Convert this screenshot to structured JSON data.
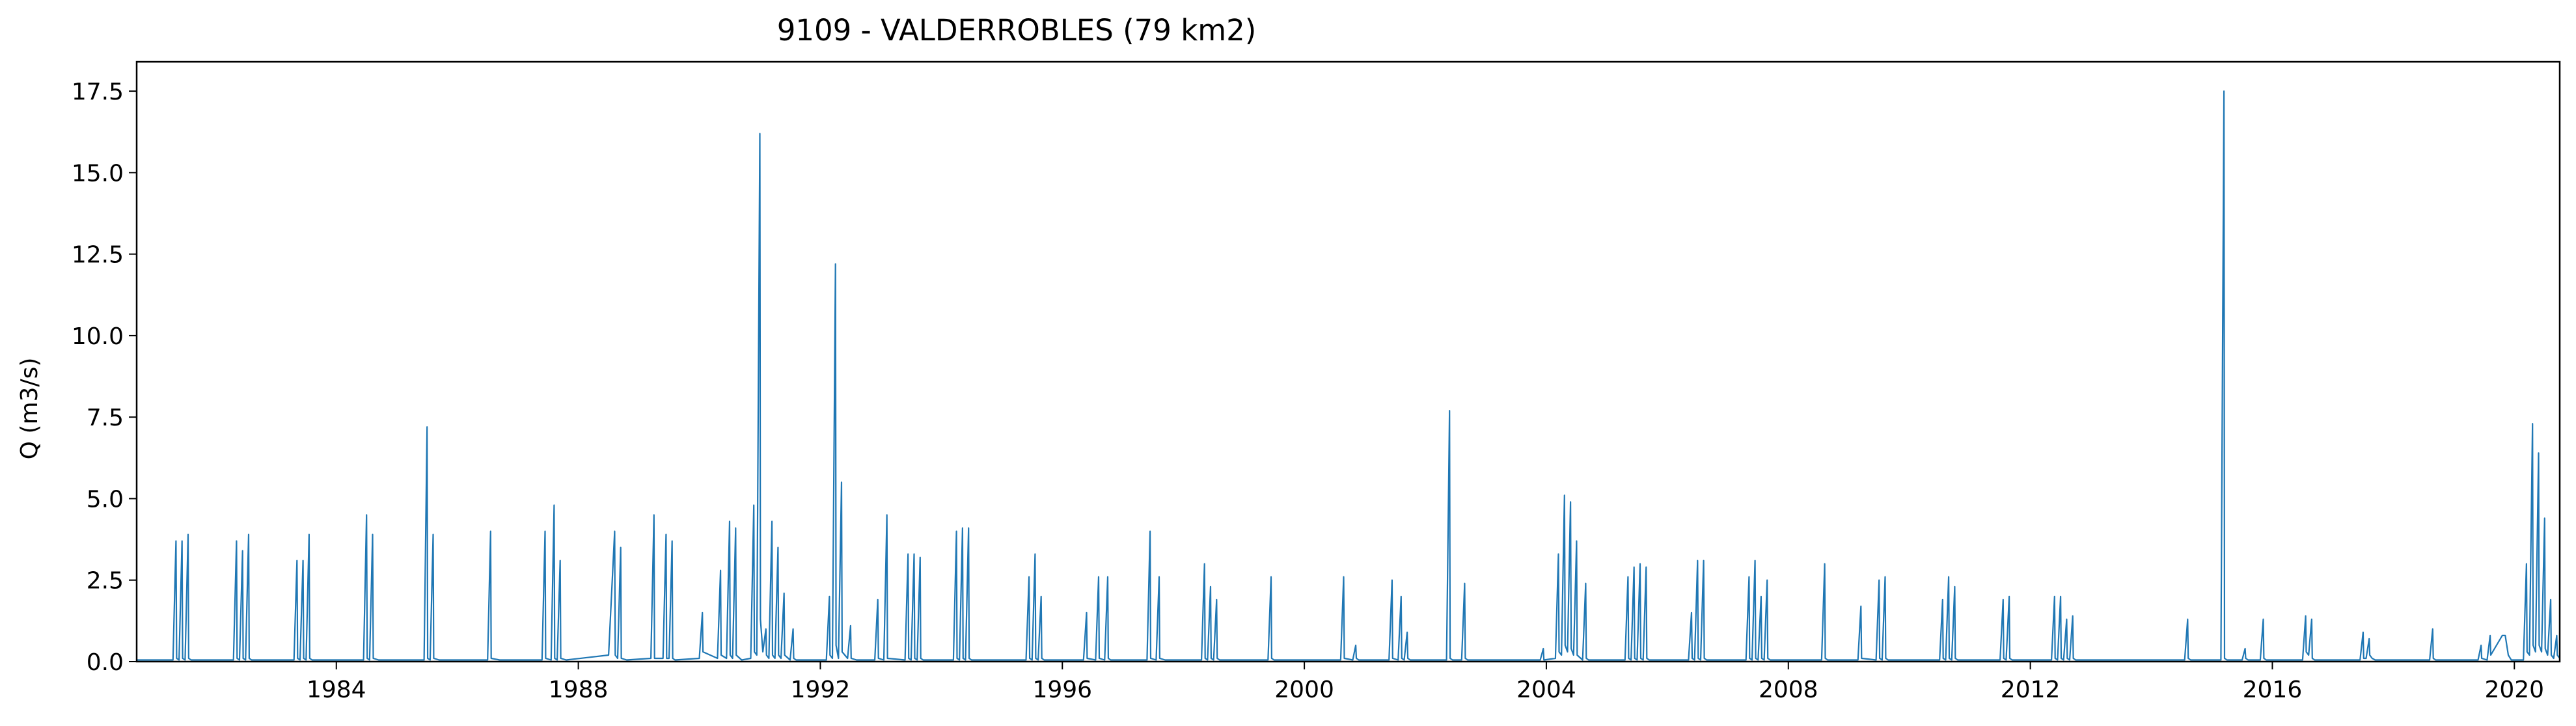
{
  "chart_data": {
    "type": "line",
    "title": "9109 - VALDERROBLES (79 km2)",
    "xlabel": "",
    "ylabel": "Q (m3/s)",
    "xlim": [
      1980.7,
      2020.75
    ],
    "ylim": [
      0,
      18.4
    ],
    "x_ticks": [
      1984,
      1988,
      1992,
      1996,
      2000,
      2004,
      2008,
      2012,
      2016,
      2020
    ],
    "y_ticks": [
      0.0,
      2.5,
      5.0,
      7.5,
      10.0,
      12.5,
      15.0,
      17.5
    ],
    "grid": false,
    "legend": "none",
    "series": [
      {
        "color": "#1f77b4",
        "x": [
          1980.7,
          1981.3,
          1981.35,
          1981.36,
          1981.4,
          1981.45,
          1981.46,
          1981.5,
          1981.55,
          1981.56,
          1981.6,
          1982.3,
          1982.35,
          1982.36,
          1982.4,
          1982.45,
          1982.46,
          1982.5,
          1982.55,
          1982.56,
          1982.6,
          1983.3,
          1983.35,
          1983.36,
          1983.4,
          1983.45,
          1983.46,
          1983.5,
          1983.55,
          1983.56,
          1983.6,
          1984.45,
          1984.5,
          1984.51,
          1984.55,
          1984.6,
          1984.61,
          1984.7,
          1985.45,
          1985.5,
          1985.51,
          1985.55,
          1985.6,
          1985.61,
          1985.7,
          1986.5,
          1986.55,
          1986.56,
          1986.7,
          1987.4,
          1987.45,
          1987.46,
          1987.55,
          1987.6,
          1987.61,
          1987.65,
          1987.7,
          1987.71,
          1987.8,
          1988.5,
          1988.6,
          1988.61,
          1988.65,
          1988.7,
          1988.71,
          1988.8,
          1989.2,
          1989.25,
          1989.26,
          1989.4,
          1989.45,
          1989.46,
          1989.5,
          1989.55,
          1989.56,
          1989.6,
          1990.0,
          1990.05,
          1990.06,
          1990.3,
          1990.35,
          1990.36,
          1990.45,
          1990.5,
          1990.51,
          1990.55,
          1990.6,
          1990.61,
          1990.7,
          1990.85,
          1990.9,
          1990.91,
          1990.95,
          1991.0,
          1991.01,
          1991.05,
          1991.1,
          1991.11,
          1991.15,
          1991.2,
          1991.21,
          1991.25,
          1991.3,
          1991.31,
          1991.35,
          1991.4,
          1991.41,
          1991.5,
          1991.55,
          1991.56,
          1991.6,
          1992.1,
          1992.15,
          1992.16,
          1992.2,
          1992.25,
          1992.26,
          1992.3,
          1992.35,
          1992.36,
          1992.45,
          1992.5,
          1992.51,
          1992.6,
          1992.9,
          1992.95,
          1992.96,
          1993.05,
          1993.1,
          1993.11,
          1993.4,
          1993.45,
          1993.46,
          1993.5,
          1993.55,
          1993.56,
          1993.6,
          1993.65,
          1993.66,
          1993.7,
          1994.2,
          1994.25,
          1994.26,
          1994.3,
          1994.35,
          1994.36,
          1994.4,
          1994.45,
          1994.46,
          1994.5,
          1995.4,
          1995.45,
          1995.46,
          1995.5,
          1995.55,
          1995.56,
          1995.6,
          1995.65,
          1995.66,
          1995.7,
          1996.35,
          1996.4,
          1996.41,
          1996.55,
          1996.6,
          1996.61,
          1996.7,
          1996.75,
          1996.76,
          1996.8,
          1997.4,
          1997.45,
          1997.46,
          1997.55,
          1997.6,
          1997.61,
          1997.7,
          1998.3,
          1998.35,
          1998.36,
          1998.4,
          1998.45,
          1998.46,
          1998.5,
          1998.55,
          1998.56,
          1998.6,
          1999.4,
          1999.45,
          1999.46,
          1999.5,
          2000.6,
          2000.65,
          2000.66,
          2000.8,
          2000.85,
          2000.86,
          2000.9,
          2001.4,
          2001.45,
          2001.46,
          2001.55,
          2001.6,
          2001.61,
          2001.65,
          2001.7,
          2001.71,
          2001.75,
          2002.35,
          2002.4,
          2002.41,
          2002.45,
          2002.6,
          2002.65,
          2002.66,
          2002.7,
          2003.9,
          2003.95,
          2003.96,
          2004.15,
          2004.2,
          2004.21,
          2004.25,
          2004.3,
          2004.31,
          2004.35,
          2004.4,
          2004.41,
          2004.45,
          2004.5,
          2004.51,
          2004.6,
          2004.65,
          2004.66,
          2004.7,
          2005.3,
          2005.35,
          2005.36,
          2005.4,
          2005.45,
          2005.46,
          2005.5,
          2005.55,
          2005.56,
          2005.6,
          2005.65,
          2005.66,
          2005.7,
          2006.35,
          2006.4,
          2006.41,
          2006.45,
          2006.5,
          2006.51,
          2006.55,
          2006.6,
          2006.61,
          2006.65,
          2007.3,
          2007.35,
          2007.36,
          2007.4,
          2007.45,
          2007.46,
          2007.5,
          2007.55,
          2007.56,
          2007.6,
          2007.65,
          2007.66,
          2007.7,
          2008.55,
          2008.6,
          2008.61,
          2008.65,
          2009.15,
          2009.2,
          2009.21,
          2009.45,
          2009.5,
          2009.51,
          2009.55,
          2009.6,
          2009.61,
          2009.65,
          2010.5,
          2010.55,
          2010.56,
          2010.6,
          2010.65,
          2010.66,
          2010.7,
          2010.75,
          2010.76,
          2010.8,
          2011.5,
          2011.55,
          2011.56,
          2011.6,
          2011.65,
          2011.66,
          2011.7,
          2012.35,
          2012.4,
          2012.41,
          2012.45,
          2012.5,
          2012.51,
          2012.55,
          2012.6,
          2012.61,
          2012.65,
          2012.7,
          2012.71,
          2012.75,
          2014.55,
          2014.6,
          2014.61,
          2014.65,
          2015.15,
          2015.2,
          2015.21,
          2015.25,
          2015.5,
          2015.55,
          2015.56,
          2015.6,
          2015.8,
          2015.85,
          2015.86,
          2015.9,
          2016.5,
          2016.55,
          2016.56,
          2016.6,
          2016.65,
          2016.66,
          2016.7,
          2017.45,
          2017.5,
          2017.51,
          2017.55,
          2017.6,
          2017.61,
          2017.65,
          2017.7,
          2018.6,
          2018.65,
          2018.66,
          2018.7,
          2019.4,
          2019.45,
          2019.46,
          2019.55,
          2019.6,
          2019.61,
          2019.8,
          2019.85,
          2019.9,
          2019.95,
          2020.15,
          2020.2,
          2020.21,
          2020.25,
          2020.3,
          2020.31,
          2020.35,
          2020.4,
          2020.41,
          2020.45,
          2020.5,
          2020.51,
          2020.55,
          2020.6,
          2020.61,
          2020.65,
          2020.7,
          2020.71,
          2020.75
        ],
        "y": [
          0.05,
          0.05,
          3.7,
          0.1,
          0.05,
          3.7,
          0.1,
          0.05,
          3.9,
          0.1,
          0.05,
          0.05,
          3.7,
          0.1,
          0.05,
          3.4,
          0.1,
          0.05,
          3.9,
          0.1,
          0.05,
          0.05,
          3.1,
          0.1,
          0.05,
          3.1,
          0.1,
          0.05,
          3.9,
          0.1,
          0.05,
          0.05,
          4.5,
          0.1,
          0.05,
          3.9,
          0.1,
          0.05,
          0.05,
          7.2,
          0.1,
          0.05,
          3.9,
          0.1,
          0.05,
          0.05,
          4.0,
          0.1,
          0.05,
          0.05,
          4.0,
          0.1,
          0.05,
          4.8,
          0.1,
          0.05,
          3.1,
          0.1,
          0.05,
          0.2,
          4.0,
          0.2,
          0.1,
          3.5,
          0.1,
          0.05,
          0.1,
          4.5,
          0.1,
          0.1,
          3.9,
          0.1,
          0.1,
          3.7,
          0.1,
          0.05,
          0.1,
          1.5,
          0.3,
          0.1,
          2.8,
          0.2,
          0.1,
          4.3,
          0.2,
          0.1,
          4.1,
          0.2,
          0.05,
          0.1,
          4.8,
          0.3,
          0.2,
          16.2,
          1.3,
          0.3,
          1.0,
          0.2,
          0.1,
          4.3,
          0.2,
          0.1,
          3.5,
          0.2,
          0.1,
          2.1,
          0.2,
          0.05,
          1.0,
          0.1,
          0.05,
          0.05,
          2.0,
          0.2,
          0.1,
          12.2,
          0.5,
          0.1,
          5.5,
          0.3,
          0.1,
          1.1,
          0.1,
          0.05,
          0.05,
          1.9,
          0.1,
          0.05,
          4.5,
          0.1,
          0.05,
          3.3,
          0.1,
          0.05,
          3.3,
          0.1,
          0.05,
          3.2,
          0.1,
          0.05,
          0.05,
          4.0,
          0.1,
          0.05,
          4.1,
          0.1,
          0.05,
          4.1,
          0.1,
          0.05,
          0.05,
          2.6,
          0.1,
          0.05,
          3.3,
          0.1,
          0.05,
          2.0,
          0.1,
          0.05,
          0.05,
          1.5,
          0.1,
          0.05,
          2.6,
          0.1,
          0.05,
          2.6,
          0.1,
          0.05,
          0.05,
          4.0,
          0.1,
          0.05,
          2.6,
          0.1,
          0.05,
          0.05,
          3.0,
          0.1,
          0.05,
          2.3,
          0.1,
          0.05,
          1.9,
          0.1,
          0.05,
          0.05,
          2.6,
          0.1,
          0.05,
          0.05,
          2.6,
          0.1,
          0.05,
          0.5,
          0.1,
          0.05,
          0.05,
          2.5,
          0.1,
          0.05,
          2.0,
          0.1,
          0.05,
          0.9,
          0.1,
          0.05,
          0.05,
          7.7,
          0.1,
          0.05,
          0.05,
          2.4,
          0.1,
          0.05,
          0.05,
          0.4,
          0.05,
          0.1,
          3.3,
          0.3,
          0.2,
          5.1,
          0.5,
          0.3,
          4.9,
          0.4,
          0.2,
          3.7,
          0.2,
          0.05,
          2.4,
          0.1,
          0.05,
          0.05,
          2.6,
          0.1,
          0.05,
          2.9,
          0.1,
          0.05,
          3.0,
          0.1,
          0.05,
          2.9,
          0.1,
          0.05,
          0.05,
          1.5,
          0.1,
          0.05,
          3.1,
          0.1,
          0.05,
          3.1,
          0.1,
          0.05,
          0.05,
          2.6,
          0.1,
          0.05,
          3.1,
          0.1,
          0.05,
          2.0,
          0.1,
          0.05,
          2.5,
          0.1,
          0.05,
          0.05,
          3.0,
          0.1,
          0.05,
          0.05,
          1.7,
          0.1,
          0.05,
          2.5,
          0.1,
          0.05,
          2.6,
          0.1,
          0.05,
          0.05,
          1.9,
          0.1,
          0.05,
          2.6,
          0.1,
          0.05,
          2.3,
          0.1,
          0.05,
          0.05,
          1.9,
          0.1,
          0.05,
          2.0,
          0.1,
          0.05,
          0.05,
          2.0,
          0.1,
          0.05,
          2.0,
          0.1,
          0.05,
          1.3,
          0.1,
          0.05,
          1.4,
          0.1,
          0.05,
          0.05,
          1.3,
          0.1,
          0.05,
          0.05,
          17.5,
          0.1,
          0.05,
          0.05,
          0.4,
          0.1,
          0.05,
          0.05,
          1.3,
          0.1,
          0.05,
          0.05,
          1.4,
          0.3,
          0.2,
          1.3,
          0.1,
          0.05,
          0.05,
          0.9,
          0.1,
          0.1,
          0.7,
          0.2,
          0.1,
          0.05,
          0.05,
          1.0,
          0.1,
          0.05,
          0.05,
          0.5,
          0.1,
          0.05,
          0.8,
          0.2,
          0.8,
          0.8,
          0.2,
          0.05,
          0.05,
          3.0,
          0.3,
          0.2,
          7.3,
          0.5,
          0.3,
          6.4,
          0.5,
          0.3,
          4.4,
          0.4,
          0.2,
          1.9,
          0.2,
          0.1,
          0.8,
          0.2,
          0.1
        ]
      }
    ]
  }
}
